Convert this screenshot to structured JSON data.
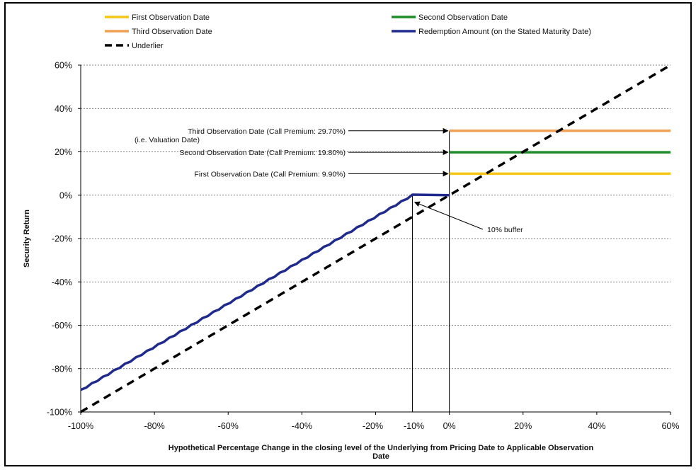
{
  "chart_data": {
    "type": "line",
    "xlabel": "Hypothetical Percentage Change in the closing level of the Underlying from Pricing Date to Applicable Observation Date",
    "ylabel": "Security Return",
    "xlim": [
      -100,
      60
    ],
    "ylim": [
      -100,
      60
    ],
    "x_ticks": [
      "-100%",
      "-80%",
      "-60%",
      "-40%",
      "-20%",
      "-10%",
      "0%",
      "20%",
      "40%",
      "60%"
    ],
    "x_tick_values": [
      -100,
      -80,
      -60,
      -40,
      -20,
      -10,
      0,
      20,
      40,
      60
    ],
    "y_ticks": [
      "60%",
      "40%",
      "20%",
      "0%",
      "-20%",
      "-40%",
      "-60%",
      "-80%",
      "-100%"
    ],
    "y_tick_values": [
      60,
      40,
      20,
      0,
      -20,
      -40,
      -60,
      -80,
      -100
    ],
    "grid": "horizontal dashed",
    "legend_position": "top",
    "series": [
      {
        "name": "First Observation Date",
        "color": "#f5c518",
        "style": "solid",
        "points": [
          [
            0,
            9.9
          ],
          [
            60,
            9.9
          ]
        ]
      },
      {
        "name": "Second Observation Date",
        "color": "#1e8c2a",
        "style": "solid",
        "points": [
          [
            0,
            19.8
          ],
          [
            60,
            19.8
          ]
        ]
      },
      {
        "name": "Third Observation Date",
        "color": "#f0a055",
        "style": "solid",
        "points": [
          [
            0,
            29.7
          ],
          [
            60,
            29.7
          ]
        ]
      },
      {
        "name": "Redemption Amount (on the Stated Maturity Date)",
        "color": "#1f2a8c",
        "style": "solid",
        "points": [
          [
            -100,
            -90
          ],
          [
            -10,
            0
          ],
          [
            0,
            0
          ]
        ]
      },
      {
        "name": "Underlier",
        "color": "#000000",
        "style": "dashed",
        "points": [
          [
            -100,
            -100
          ],
          [
            60,
            60
          ]
        ]
      }
    ],
    "annotations": [
      {
        "lines": [
          "Third Observation Date (Call Premium: 29.70%)",
          "(i.e. Valuation Date)"
        ],
        "target": [
          0,
          29.7
        ]
      },
      {
        "lines": [
          "Second Observation Date (Call Premium: 19.80%)"
        ],
        "target": [
          0,
          19.8
        ]
      },
      {
        "lines": [
          "First Observation Date (Call Premium: 9.90%)"
        ],
        "target": [
          0,
          9.9
        ]
      },
      {
        "lines": [
          "10% buffer"
        ],
        "target": [
          -9,
          0
        ]
      }
    ],
    "reference_lines_x": [
      -10,
      0
    ]
  }
}
